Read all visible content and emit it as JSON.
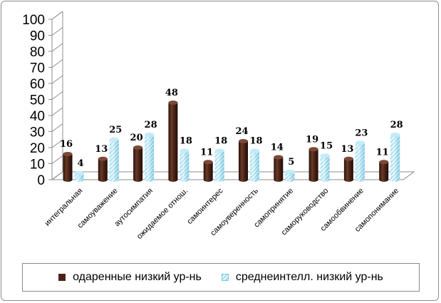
{
  "chart_data": {
    "type": "bar",
    "title": "",
    "xlabel": "",
    "ylabel": "",
    "ylim": [
      0,
      100
    ],
    "yticks": [
      0,
      10,
      20,
      30,
      40,
      50,
      60,
      70,
      80,
      90,
      100
    ],
    "categories": [
      "интегральная",
      "самоуважение",
      "аутосимпатия",
      "ожидаемое отнош.",
      "самоинтерес",
      "самоуверенность",
      "самопринятие",
      "саморуководство",
      "самообвинение",
      "самопонимание"
    ],
    "series": [
      {
        "name": "одаренные низкий ур-нь",
        "values": [
          16,
          13,
          20,
          48,
          11,
          24,
          14,
          19,
          13,
          11
        ],
        "color": "#4a2418"
      },
      {
        "name": "среднеинтелл. низкий ур-нь",
        "values": [
          4,
          25,
          28,
          18,
          18,
          18,
          5,
          15,
          23,
          28
        ],
        "color": "#a6e0f2"
      }
    ],
    "grid": false,
    "style": "3d-cylinder",
    "legend_position": "bottom"
  }
}
